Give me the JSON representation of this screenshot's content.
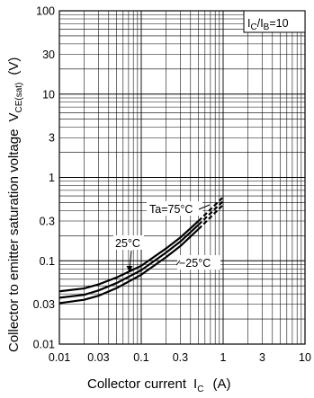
{
  "chart_data": {
    "type": "line",
    "xscale": "log",
    "yscale": "log",
    "xlim": [
      0.01,
      10
    ],
    "ylim": [
      0.01,
      100
    ],
    "grid": true,
    "x_ticks": [
      "0.01",
      "0.03",
      "0.1",
      "0.3",
      "1",
      "3",
      "10"
    ],
    "y_ticks": [
      "100",
      "30",
      "10",
      "3",
      "1",
      "0.3",
      "0.1",
      "0.03",
      "0.01"
    ],
    "xlabel": {
      "main": "Collector current",
      "symbol": "I",
      "sub": "C",
      "unit": "(A)"
    },
    "ylabel": {
      "main": "Collector to emitter saturation voltage",
      "symbol": "V",
      "sub": "CE(sat)",
      "unit": "(V)"
    },
    "condition": {
      "symbol": "I",
      "sub1": "C",
      "slash": "/I",
      "sub2": "B",
      "value": "=10"
    },
    "series": [
      {
        "name": "Ta=75°C",
        "dash": true,
        "x": [
          0.01,
          0.02,
          0.03,
          0.05,
          0.1,
          0.2,
          0.3,
          0.5,
          1
        ],
        "y": [
          0.043,
          0.0465,
          0.052,
          0.063,
          0.087,
          0.14,
          0.19,
          0.3,
          0.58
        ]
      },
      {
        "name": "25°C",
        "dash": true,
        "x": [
          0.01,
          0.02,
          0.03,
          0.05,
          0.1,
          0.2,
          0.3,
          0.5,
          1
        ],
        "y": [
          0.036,
          0.039,
          0.044,
          0.054,
          0.077,
          0.125,
          0.17,
          0.27,
          0.52
        ]
      },
      {
        "name": "−25°C",
        "dash": true,
        "x": [
          0.01,
          0.02,
          0.03,
          0.05,
          0.1,
          0.2,
          0.3,
          0.5,
          1
        ],
        "y": [
          0.031,
          0.034,
          0.038,
          0.047,
          0.068,
          0.11,
          0.15,
          0.24,
          0.47
        ]
      }
    ]
  }
}
